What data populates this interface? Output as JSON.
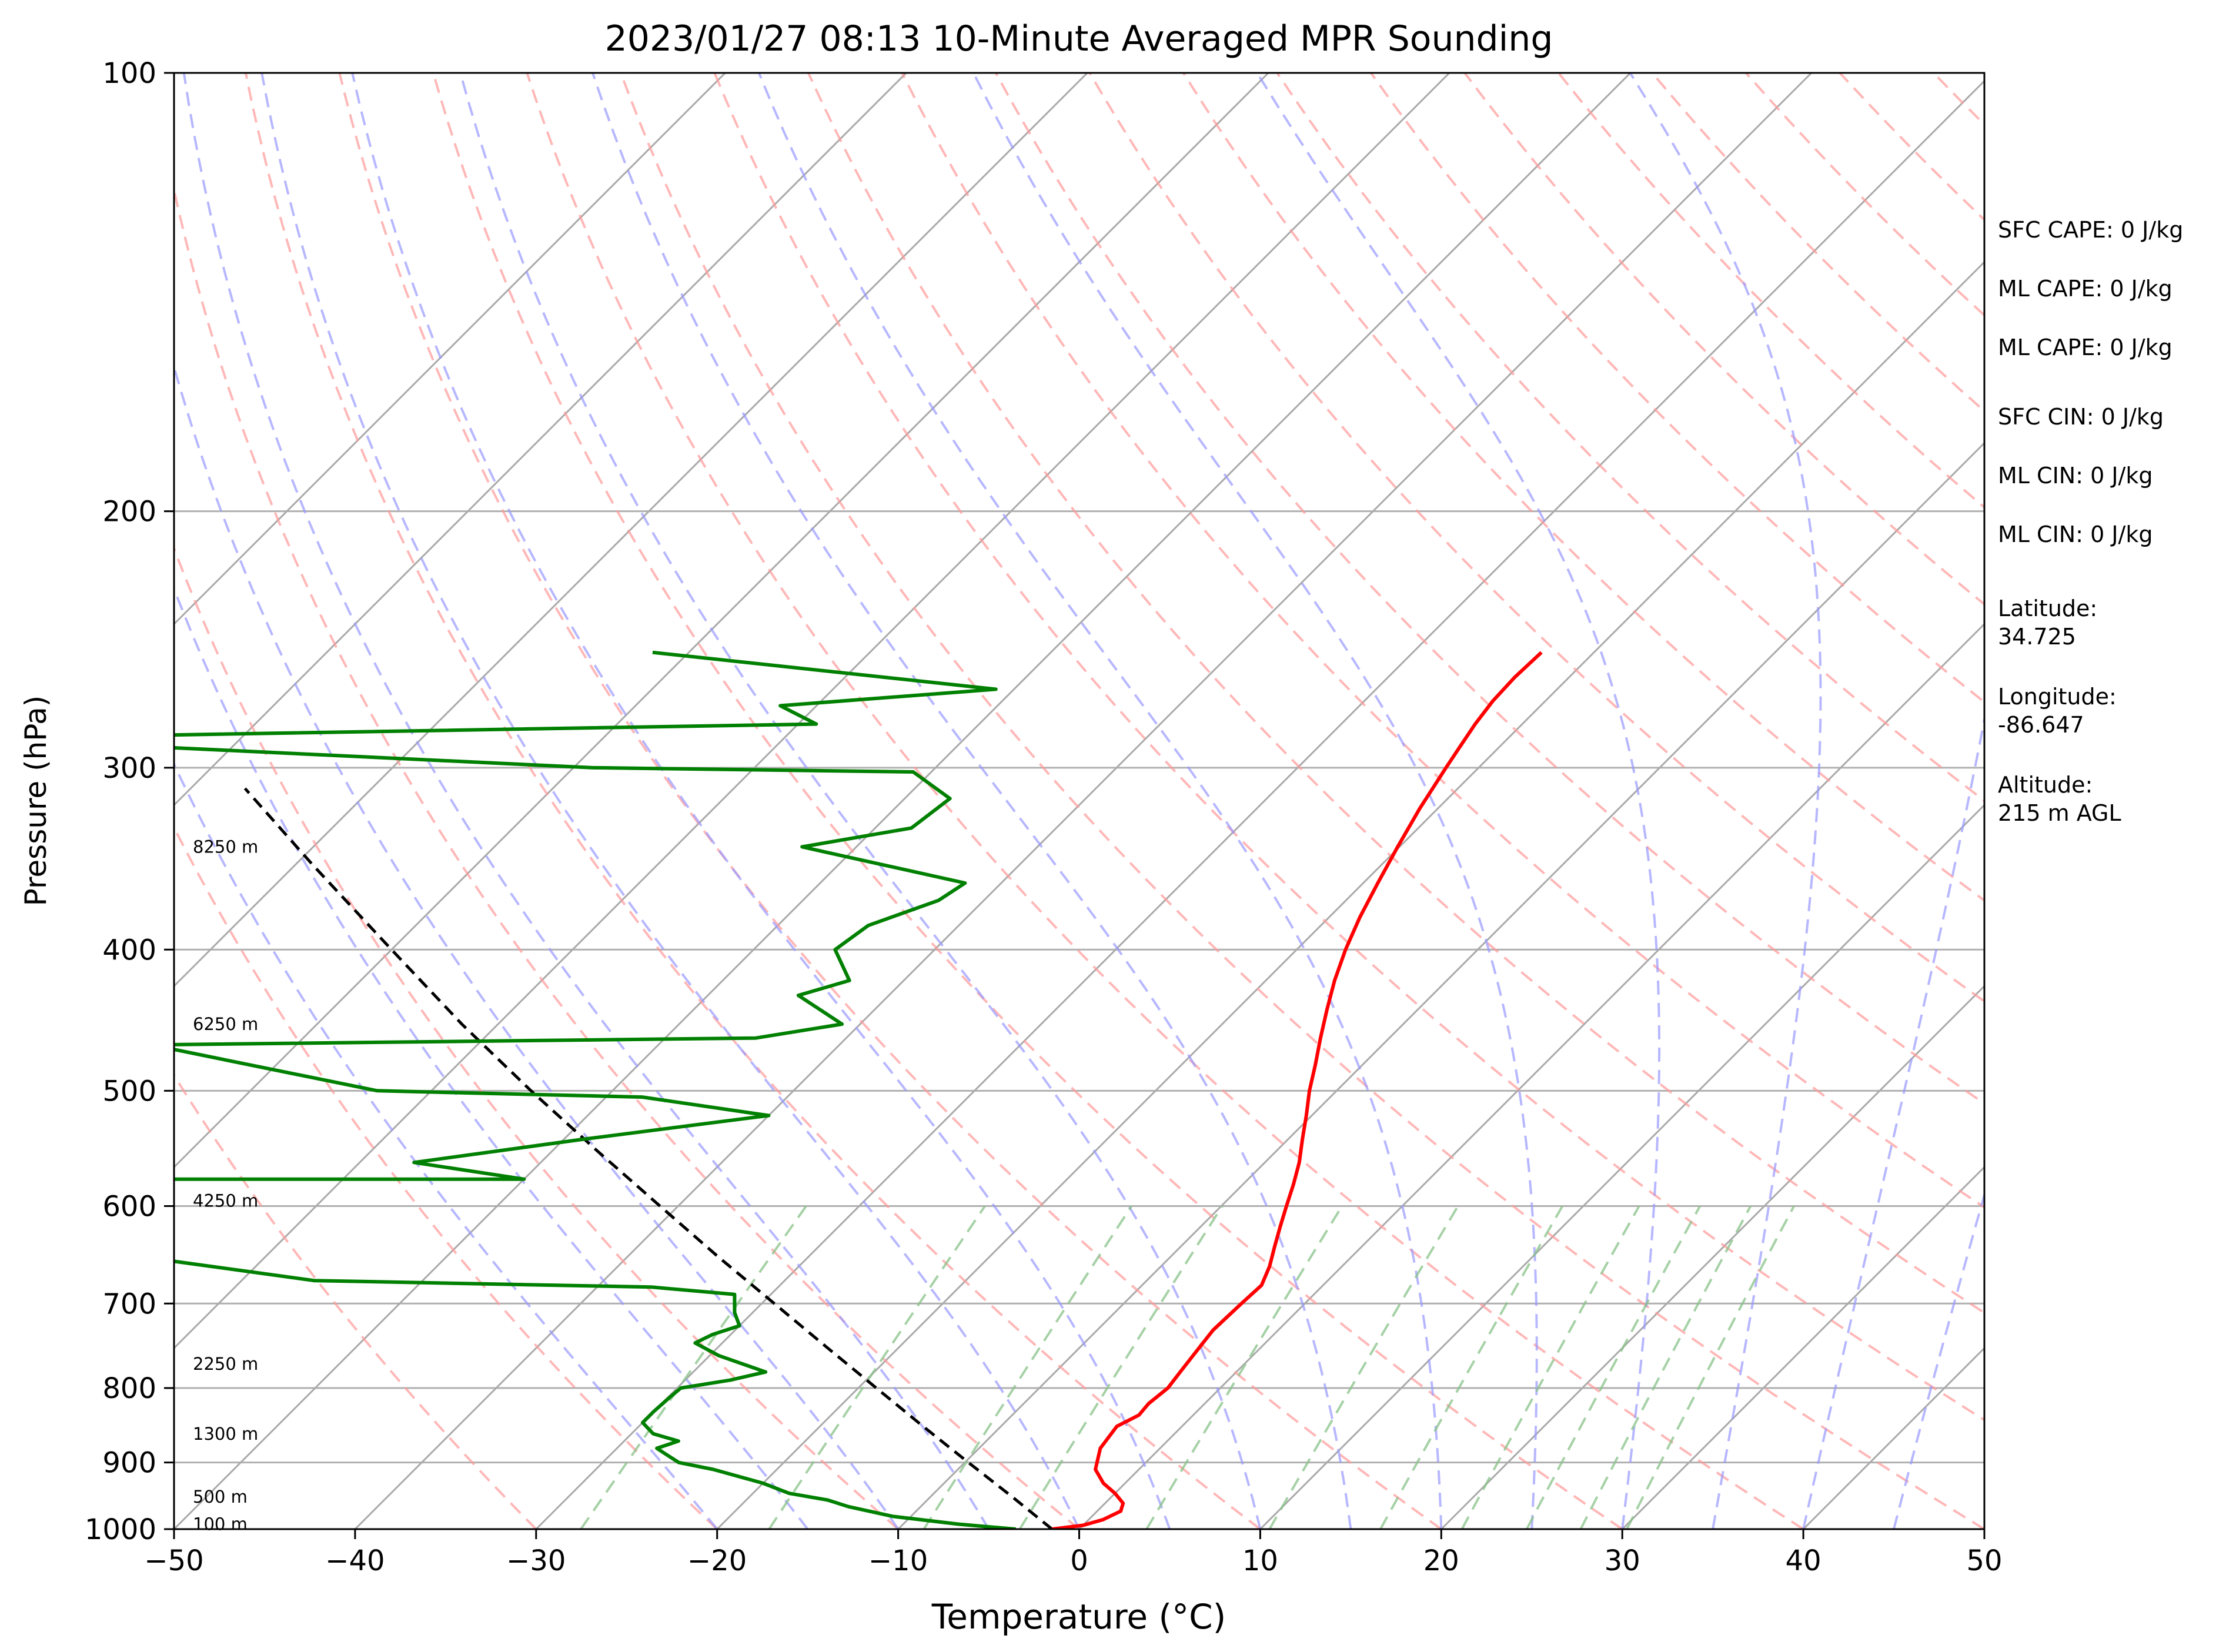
{
  "chart_data": {
    "type": "line",
    "chart_kind": "skew-T log-P sounding",
    "title": "2023/01/27 08:13 10-Minute Averaged MPR Sounding",
    "xlabel": "Temperature (°C)",
    "ylabel": "Pressure (hPa)",
    "xlim": [
      -50,
      50
    ],
    "ylim": [
      1000,
      100
    ],
    "yscale": "log",
    "x_ticks": [
      "−50",
      "−40",
      "−30",
      "−20",
      "−10",
      "0",
      "10",
      "20",
      "30",
      "40",
      "50"
    ],
    "y_ticks": [
      "100",
      "200",
      "300",
      "400",
      "500",
      "600",
      "700",
      "800",
      "900",
      "1000"
    ],
    "grid": "horizontal isobars at 200, 300, 400, 500, 600, 700, 800, 900 hPa",
    "background_lines": {
      "isotherms": {
        "color": "#aaaaaa",
        "style": "solid, skewed"
      },
      "dry_adiabats": {
        "color": "#ff9999",
        "style": "dashed"
      },
      "moist_adiabats": {
        "color": "#9999ff",
        "style": "dashed"
      },
      "mixing_ratio_lines": {
        "color": "#88c288",
        "style": "dashed, below 600 hPa"
      }
    },
    "series": [
      {
        "key": "temperature",
        "color": "#ff0000",
        "points": [
          {
            "p": 1000,
            "t": -1.5
          },
          {
            "p": 994,
            "t": 0.0
          },
          {
            "p": 985,
            "t": 0.8
          },
          {
            "p": 972,
            "t": 1.3
          },
          {
            "p": 960,
            "t": 1.0
          },
          {
            "p": 945,
            "t": 0.0
          },
          {
            "p": 930,
            "t": -1.2
          },
          {
            "p": 910,
            "t": -2.4
          },
          {
            "p": 880,
            "t": -3.3
          },
          {
            "p": 850,
            "t": -3.6
          },
          {
            "p": 835,
            "t": -3.0
          },
          {
            "p": 820,
            "t": -3.1
          },
          {
            "p": 800,
            "t": -2.9
          },
          {
            "p": 780,
            "t": -3.1
          },
          {
            "p": 760,
            "t": -3.3
          },
          {
            "p": 730,
            "t": -3.6
          },
          {
            "p": 700,
            "t": -3.5
          },
          {
            "p": 680,
            "t": -3.4
          },
          {
            "p": 660,
            "t": -4.0
          },
          {
            "p": 640,
            "t": -4.8
          },
          {
            "p": 620,
            "t": -5.6
          },
          {
            "p": 600,
            "t": -6.4
          },
          {
            "p": 580,
            "t": -7.2
          },
          {
            "p": 560,
            "t": -8.1
          },
          {
            "p": 540,
            "t": -9.2
          },
          {
            "p": 520,
            "t": -10.3
          },
          {
            "p": 500,
            "t": -11.5
          },
          {
            "p": 480,
            "t": -12.6
          },
          {
            "p": 460,
            "t": -13.8
          },
          {
            "p": 440,
            "t": -15.0
          },
          {
            "p": 420,
            "t": -16.2
          },
          {
            "p": 400,
            "t": -17.3
          },
          {
            "p": 380,
            "t": -18.3
          },
          {
            "p": 360,
            "t": -19.2
          },
          {
            "p": 340,
            "t": -20.1
          },
          {
            "p": 320,
            "t": -21.0
          },
          {
            "p": 300,
            "t": -21.8
          },
          {
            "p": 290,
            "t": -22.2
          },
          {
            "p": 280,
            "t": -22.6
          },
          {
            "p": 270,
            "t": -22.9
          },
          {
            "p": 260,
            "t": -23.0
          },
          {
            "p": 250,
            "t": -22.9
          }
        ]
      },
      {
        "key": "dewpoint",
        "color": "#008000",
        "points": [
          {
            "p": 1000,
            "t": -3.5
          },
          {
            "p": 992,
            "t": -7.0
          },
          {
            "p": 980,
            "t": -11.0
          },
          {
            "p": 965,
            "t": -14.0
          },
          {
            "p": 955,
            "t": -15.5
          },
          {
            "p": 945,
            "t": -18.0
          },
          {
            "p": 930,
            "t": -20.0
          },
          {
            "p": 910,
            "t": -23.5
          },
          {
            "p": 900,
            "t": -25.8
          },
          {
            "p": 890,
            "t": -26.8
          },
          {
            "p": 880,
            "t": -27.8
          },
          {
            "p": 870,
            "t": -27.0
          },
          {
            "p": 860,
            "t": -28.8
          },
          {
            "p": 845,
            "t": -30.0
          },
          {
            "p": 830,
            "t": -30.0
          },
          {
            "p": 812,
            "t": -29.9
          },
          {
            "p": 800,
            "t": -29.8
          },
          {
            "p": 790,
            "t": -27.5
          },
          {
            "p": 780,
            "t": -26.0
          },
          {
            "p": 760,
            "t": -29.5
          },
          {
            "p": 745,
            "t": -31.5
          },
          {
            "p": 735,
            "t": -31.0
          },
          {
            "p": 725,
            "t": -30.0
          },
          {
            "p": 710,
            "t": -31.0
          },
          {
            "p": 690,
            "t": -32.0
          },
          {
            "p": 682,
            "t": -37.0
          },
          {
            "p": 675,
            "t": -56.0
          },
          {
            "p": 632,
            "t": -75.0
          },
          {
            "p": 575,
            "t": -73.0
          },
          {
            "p": 575,
            "t": -50.0
          },
          {
            "p": 560,
            "t": -57.0
          },
          {
            "p": 540,
            "t": -49.0
          },
          {
            "p": 520,
            "t": -40.0
          },
          {
            "p": 505,
            "t": -48.0
          },
          {
            "p": 500,
            "t": -63.0
          },
          {
            "p": 465,
            "t": -78.0
          },
          {
            "p": 460,
            "t": -45.0
          },
          {
            "p": 450,
            "t": -41.0
          },
          {
            "p": 430,
            "t": -45.0
          },
          {
            "p": 420,
            "t": -43.0
          },
          {
            "p": 400,
            "t": -45.5
          },
          {
            "p": 385,
            "t": -45.0
          },
          {
            "p": 370,
            "t": -42.5
          },
          {
            "p": 360,
            "t": -42.0
          },
          {
            "p": 340,
            "t": -53.0
          },
          {
            "p": 330,
            "t": -48.0
          },
          {
            "p": 315,
            "t": -47.5
          },
          {
            "p": 302,
            "t": -51.0
          },
          {
            "p": 300,
            "t": -69.0
          },
          {
            "p": 290,
            "t": -95.0
          },
          {
            "p": 285,
            "t": -95.0
          },
          {
            "p": 280,
            "t": -59.0
          },
          {
            "p": 272,
            "t": -62.0
          },
          {
            "p": 265,
            "t": -51.0
          },
          {
            "p": 250,
            "t": -72.0
          }
        ]
      },
      {
        "key": "parcel",
        "color": "#000000",
        "style": "dashed",
        "points": [
          {
            "p": 1000,
            "t": -1.5
          },
          {
            "p": 950,
            "t": -5.5
          },
          {
            "p": 900,
            "t": -9.8
          },
          {
            "p": 850,
            "t": -14.3
          },
          {
            "p": 800,
            "t": -19.0
          },
          {
            "p": 750,
            "t": -24.0
          },
          {
            "p": 700,
            "t": -29.3
          },
          {
            "p": 650,
            "t": -35.0
          },
          {
            "p": 600,
            "t": -41.0
          },
          {
            "p": 550,
            "t": -47.5
          },
          {
            "p": 500,
            "t": -54.5
          },
          {
            "p": 450,
            "t": -62.0
          },
          {
            "p": 400,
            "t": -70.0
          },
          {
            "p": 350,
            "t": -79.0
          },
          {
            "p": 310,
            "t": -87.0
          }
        ]
      }
    ],
    "height_labels": [
      {
        "p": 992,
        "text": "100 m"
      },
      {
        "p": 950,
        "text": "500 m"
      },
      {
        "p": 860,
        "text": "1300 m"
      },
      {
        "p": 770,
        "text": "2250 m"
      },
      {
        "p": 595,
        "text": "4250 m"
      },
      {
        "p": 450,
        "text": "6250 m"
      },
      {
        "p": 340,
        "text": "8250 m"
      }
    ],
    "side_annotations": [
      "SFC CAPE: 0 J/kg",
      "ML CAPE: 0 J/kg",
      "ML CAPE: 0 J/kg",
      "SFC CIN: 0 J/kg",
      "ML CIN: 0 J/kg",
      "ML CIN: 0 J/kg",
      "Latitude:\n34.725",
      "Longitude:\n-86.647",
      "Altitude:\n215 m AGL"
    ]
  }
}
